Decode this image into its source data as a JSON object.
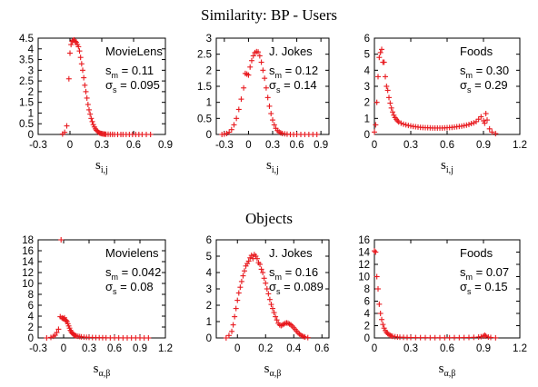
{
  "figure": {
    "top_title": "Similarity: BP - Users",
    "section_title": "Objects"
  },
  "chart_data": [
    {
      "type": "scatter",
      "row": "users",
      "label": "MovieLens",
      "stats": {
        "s_m": "0.11",
        "sigma_s": "0.095"
      },
      "xlabel": {
        "base": "s",
        "sub": "i,j"
      },
      "xlim": [
        -0.3,
        0.9
      ],
      "ylim": [
        0,
        4.5
      ],
      "xticks": [
        "-0.3",
        "0",
        "0.3",
        "0.6",
        "0.9"
      ],
      "yticks": [
        "0",
        "0.5",
        "1",
        "1.5",
        "2",
        "2.5",
        "3",
        "3.5",
        "4",
        "4.5"
      ],
      "color": "#e8191e",
      "points": [
        [
          -0.07,
          0.02
        ],
        [
          -0.05,
          0.1
        ],
        [
          -0.03,
          0.4
        ],
        [
          -0.01,
          2.6
        ],
        [
          0.0,
          3.8
        ],
        [
          0.01,
          4.2
        ],
        [
          0.02,
          4.35
        ],
        [
          0.03,
          4.4
        ],
        [
          0.04,
          4.42
        ],
        [
          0.05,
          4.35
        ],
        [
          0.06,
          4.3
        ],
        [
          0.07,
          4.2
        ],
        [
          0.08,
          4.1
        ],
        [
          0.09,
          3.9
        ],
        [
          0.1,
          3.6
        ],
        [
          0.11,
          3.3
        ],
        [
          0.12,
          3.0
        ],
        [
          0.13,
          2.65
        ],
        [
          0.14,
          2.3
        ],
        [
          0.15,
          2.0
        ],
        [
          0.16,
          1.7
        ],
        [
          0.17,
          1.4
        ],
        [
          0.18,
          1.15
        ],
        [
          0.19,
          0.95
        ],
        [
          0.2,
          0.75
        ],
        [
          0.21,
          0.6
        ],
        [
          0.22,
          0.46
        ],
        [
          0.23,
          0.35
        ],
        [
          0.24,
          0.26
        ],
        [
          0.25,
          0.19
        ],
        [
          0.26,
          0.14
        ],
        [
          0.27,
          0.1
        ],
        [
          0.28,
          0.07
        ],
        [
          0.29,
          0.05
        ],
        [
          0.3,
          0.035
        ],
        [
          0.31,
          0.025
        ],
        [
          0.32,
          0.02
        ],
        [
          0.33,
          0.015
        ],
        [
          0.34,
          0.01
        ],
        [
          0.36,
          0.01
        ],
        [
          0.38,
          0.005
        ],
        [
          0.4,
          0.005
        ],
        [
          0.42,
          0.0
        ],
        [
          0.45,
          0.0
        ],
        [
          0.48,
          0.0
        ],
        [
          0.5,
          0.0
        ],
        [
          0.53,
          0.0
        ],
        [
          0.56,
          0.0
        ],
        [
          0.59,
          0.0
        ],
        [
          0.62,
          0.0
        ],
        [
          0.65,
          0.0
        ],
        [
          0.68,
          0.0
        ],
        [
          0.72,
          0.0
        ],
        [
          0.76,
          0.0
        ]
      ]
    },
    {
      "type": "scatter",
      "row": "users",
      "label": "J. Jokes",
      "stats": {
        "s_m": "0.12",
        "sigma_s": "0.14"
      },
      "xlabel": {
        "base": "s",
        "sub": "i,j"
      },
      "xlim": [
        -0.4,
        1.0
      ],
      "ylim": [
        0,
        3
      ],
      "xticks": [
        "-0.3",
        "0",
        "0.3",
        "0.6",
        "0.9"
      ],
      "yticks": [
        "0",
        "0.5",
        "1",
        "1.5",
        "2",
        "2.5",
        "3"
      ],
      "color": "#e8191e",
      "points": [
        [
          -0.33,
          0.0
        ],
        [
          -0.3,
          0.01
        ],
        [
          -0.27,
          0.03
        ],
        [
          -0.24,
          0.07
        ],
        [
          -0.21,
          0.15
        ],
        [
          -0.18,
          0.3
        ],
        [
          -0.15,
          0.5
        ],
        [
          -0.12,
          0.78
        ],
        [
          -0.09,
          1.1
        ],
        [
          -0.06,
          1.45
        ],
        [
          -0.04,
          1.9
        ],
        [
          -0.02,
          1.88
        ],
        [
          0.0,
          1.85
        ],
        [
          0.02,
          2.1
        ],
        [
          0.04,
          2.3
        ],
        [
          0.06,
          2.45
        ],
        [
          0.08,
          2.55
        ],
        [
          0.1,
          2.58
        ],
        [
          0.12,
          2.57
        ],
        [
          0.14,
          2.45
        ],
        [
          0.16,
          2.25
        ],
        [
          0.18,
          2.0
        ],
        [
          0.2,
          1.75
        ],
        [
          0.22,
          1.45
        ],
        [
          0.24,
          1.15
        ],
        [
          0.26,
          0.88
        ],
        [
          0.28,
          0.65
        ],
        [
          0.3,
          0.45
        ],
        [
          0.32,
          0.3
        ],
        [
          0.34,
          0.19
        ],
        [
          0.36,
          0.12
        ],
        [
          0.38,
          0.08
        ],
        [
          0.4,
          0.05
        ],
        [
          0.42,
          0.03
        ],
        [
          0.45,
          0.02
        ],
        [
          0.48,
          0.01
        ],
        [
          0.52,
          0.0
        ],
        [
          0.56,
          0.0
        ],
        [
          0.6,
          0.0
        ],
        [
          0.65,
          0.0
        ],
        [
          0.7,
          0.0
        ],
        [
          0.75,
          0.0
        ],
        [
          0.8,
          0.0
        ],
        [
          0.85,
          0.0
        ]
      ]
    },
    {
      "type": "scatter",
      "row": "users",
      "label": "Foods",
      "stats": {
        "s_m": "0.30",
        "sigma_s": "0.29"
      },
      "xlabel": {
        "base": "s",
        "sub": "i,j"
      },
      "xlim": [
        0,
        1.2
      ],
      "ylim": [
        0,
        6
      ],
      "xticks": [
        "0",
        "0.3",
        "0.6",
        "0.9",
        "1.2"
      ],
      "yticks": [
        "0",
        "1",
        "2",
        "3",
        "4",
        "5",
        "6"
      ],
      "color": "#e8191e",
      "points": [
        [
          0.0,
          0.15
        ],
        [
          0.01,
          0.6
        ],
        [
          0.02,
          2.0
        ],
        [
          0.03,
          3.6
        ],
        [
          0.04,
          4.8
        ],
        [
          0.05,
          5.1
        ],
        [
          0.06,
          5.3
        ],
        [
          0.07,
          4.5
        ],
        [
          0.08,
          4.5
        ],
        [
          0.09,
          3.6
        ],
        [
          0.1,
          3.0
        ],
        [
          0.11,
          2.75
        ],
        [
          0.12,
          2.3
        ],
        [
          0.13,
          1.95
        ],
        [
          0.14,
          1.65
        ],
        [
          0.15,
          1.4
        ],
        [
          0.16,
          1.2
        ],
        [
          0.17,
          1.05
        ],
        [
          0.18,
          0.95
        ],
        [
          0.19,
          0.85
        ],
        [
          0.2,
          0.78
        ],
        [
          0.22,
          0.7
        ],
        [
          0.24,
          0.64
        ],
        [
          0.26,
          0.6
        ],
        [
          0.28,
          0.56
        ],
        [
          0.3,
          0.53
        ],
        [
          0.32,
          0.5
        ],
        [
          0.34,
          0.48
        ],
        [
          0.36,
          0.46
        ],
        [
          0.38,
          0.44
        ],
        [
          0.4,
          0.43
        ],
        [
          0.42,
          0.42
        ],
        [
          0.44,
          0.42
        ],
        [
          0.46,
          0.41
        ],
        [
          0.48,
          0.4
        ],
        [
          0.5,
          0.4
        ],
        [
          0.52,
          0.4
        ],
        [
          0.54,
          0.4
        ],
        [
          0.56,
          0.4
        ],
        [
          0.58,
          0.41
        ],
        [
          0.6,
          0.42
        ],
        [
          0.62,
          0.43
        ],
        [
          0.64,
          0.44
        ],
        [
          0.66,
          0.46
        ],
        [
          0.68,
          0.48
        ],
        [
          0.7,
          0.5
        ],
        [
          0.72,
          0.52
        ],
        [
          0.74,
          0.55
        ],
        [
          0.76,
          0.58
        ],
        [
          0.78,
          0.62
        ],
        [
          0.8,
          0.68
        ],
        [
          0.82,
          0.72
        ],
        [
          0.84,
          0.8
        ],
        [
          0.86,
          0.95
        ],
        [
          0.88,
          1.1
        ],
        [
          0.9,
          0.85
        ],
        [
          0.91,
          0.7
        ],
        [
          0.92,
          1.3
        ],
        [
          0.93,
          0.9
        ],
        [
          0.95,
          0.35
        ],
        [
          0.97,
          0.15
        ],
        [
          1.0,
          0.05
        ]
      ]
    },
    {
      "type": "scatter",
      "row": "objects",
      "label": "Movielens",
      "stats": {
        "s_m": "0.042",
        "sigma_s": "0.08"
      },
      "xlabel": {
        "base": "s",
        "sub": "α,β"
      },
      "xlim": [
        -0.3,
        1.2
      ],
      "ylim": [
        0,
        18
      ],
      "xticks": [
        "-0.3",
        "0",
        "0.3",
        "0.6",
        "0.9",
        "1.2"
      ],
      "yticks": [
        "0",
        "2",
        "4",
        "6",
        "8",
        "10",
        "12",
        "14",
        "16",
        "18"
      ],
      "color": "#e8191e",
      "points": [
        [
          -0.2,
          0.0
        ],
        [
          -0.15,
          0.1
        ],
        [
          -0.12,
          0.3
        ],
        [
          -0.1,
          0.5
        ],
        [
          -0.08,
          1.0
        ],
        [
          -0.06,
          1.6
        ],
        [
          -0.04,
          3.9
        ],
        [
          -0.03,
          18.0
        ],
        [
          -0.02,
          3.7
        ],
        [
          -0.01,
          3.6
        ],
        [
          0.0,
          3.5
        ],
        [
          0.01,
          3.7
        ],
        [
          0.02,
          3.3
        ],
        [
          0.03,
          3.2
        ],
        [
          0.04,
          3.0
        ],
        [
          0.05,
          2.6
        ],
        [
          0.06,
          2.2
        ],
        [
          0.07,
          1.8
        ],
        [
          0.08,
          1.4
        ],
        [
          0.09,
          1.15
        ],
        [
          0.1,
          0.9
        ],
        [
          0.11,
          0.75
        ],
        [
          0.12,
          0.6
        ],
        [
          0.13,
          0.5
        ],
        [
          0.14,
          0.42
        ],
        [
          0.15,
          0.36
        ],
        [
          0.17,
          0.3
        ],
        [
          0.19,
          0.25
        ],
        [
          0.21,
          0.2
        ],
        [
          0.24,
          0.15
        ],
        [
          0.27,
          0.12
        ],
        [
          0.3,
          0.1
        ],
        [
          0.34,
          0.08
        ],
        [
          0.38,
          0.06
        ],
        [
          0.42,
          0.05
        ],
        [
          0.46,
          0.04
        ],
        [
          0.5,
          0.03
        ],
        [
          0.55,
          0.02
        ],
        [
          0.6,
          0.02
        ],
        [
          0.65,
          0.02
        ],
        [
          0.7,
          0.01
        ],
        [
          0.75,
          0.01
        ],
        [
          0.8,
          0.01
        ],
        [
          0.85,
          0.01
        ],
        [
          0.9,
          0.01
        ],
        [
          0.95,
          0.0
        ],
        [
          1.0,
          0.0
        ]
      ]
    },
    {
      "type": "scatter",
      "row": "objects",
      "label": "J. Jokes",
      "stats": {
        "s_m": "0.16",
        "sigma_s": "0.089"
      },
      "xlabel": {
        "base": "s",
        "sub": "α,β"
      },
      "xlim": [
        -0.15,
        0.65
      ],
      "ylim": [
        0,
        6
      ],
      "xticks": [
        "0",
        "0.2",
        "0.4",
        "0.6"
      ],
      "yticks": [
        "0",
        "1",
        "2",
        "3",
        "4",
        "5",
        "6"
      ],
      "color": "#e8191e",
      "points": [
        [
          -0.08,
          0.0
        ],
        [
          -0.06,
          0.15
        ],
        [
          -0.04,
          0.4
        ],
        [
          -0.03,
          0.8
        ],
        [
          -0.02,
          1.3
        ],
        [
          -0.01,
          1.8
        ],
        [
          0.0,
          2.3
        ],
        [
          0.01,
          2.75
        ],
        [
          0.02,
          3.1
        ],
        [
          0.03,
          3.45
        ],
        [
          0.04,
          3.8
        ],
        [
          0.05,
          4.1
        ],
        [
          0.06,
          4.4
        ],
        [
          0.07,
          4.55
        ],
        [
          0.08,
          4.7
        ],
        [
          0.09,
          4.9
        ],
        [
          0.1,
          5.05
        ],
        [
          0.11,
          4.85
        ],
        [
          0.12,
          5.1
        ],
        [
          0.13,
          5.0
        ],
        [
          0.14,
          4.85
        ],
        [
          0.15,
          4.6
        ],
        [
          0.16,
          4.5
        ],
        [
          0.17,
          4.2
        ],
        [
          0.18,
          4.0
        ],
        [
          0.19,
          3.65
        ],
        [
          0.2,
          3.35
        ],
        [
          0.21,
          3.0
        ],
        [
          0.22,
          2.7
        ],
        [
          0.23,
          2.35
        ],
        [
          0.24,
          2.05
        ],
        [
          0.25,
          1.8
        ],
        [
          0.26,
          1.55
        ],
        [
          0.27,
          1.3
        ],
        [
          0.28,
          1.1
        ],
        [
          0.29,
          0.9
        ],
        [
          0.3,
          0.8
        ],
        [
          0.31,
          0.75
        ],
        [
          0.32,
          0.8
        ],
        [
          0.33,
          0.85
        ],
        [
          0.34,
          0.9
        ],
        [
          0.35,
          0.92
        ],
        [
          0.36,
          0.9
        ],
        [
          0.37,
          0.85
        ],
        [
          0.38,
          0.8
        ],
        [
          0.39,
          0.72
        ],
        [
          0.4,
          0.62
        ],
        [
          0.41,
          0.52
        ],
        [
          0.42,
          0.42
        ],
        [
          0.43,
          0.32
        ],
        [
          0.44,
          0.24
        ],
        [
          0.45,
          0.17
        ],
        [
          0.46,
          0.12
        ],
        [
          0.47,
          0.08
        ],
        [
          0.48,
          0.05
        ],
        [
          0.5,
          0.02
        ]
      ]
    },
    {
      "type": "scatter",
      "row": "objects",
      "label": "Foods",
      "stats": {
        "s_m": "0.07",
        "sigma_s": "0.15"
      },
      "xlabel": {
        "base": "s",
        "sub": "α,β"
      },
      "xlim": [
        0,
        1.2
      ],
      "ylim": [
        0,
        16
      ],
      "xticks": [
        "0",
        "0.3",
        "0.6",
        "0.9",
        "1.2"
      ],
      "yticks": [
        "0",
        "2",
        "4",
        "6",
        "8",
        "10",
        "12",
        "14",
        "16"
      ],
      "color": "#e8191e",
      "points": [
        [
          0.0,
          14.2
        ],
        [
          0.01,
          14.0
        ],
        [
          0.02,
          10.0
        ],
        [
          0.03,
          8.0
        ],
        [
          0.04,
          5.5
        ],
        [
          0.05,
          4.0
        ],
        [
          0.06,
          3.0
        ],
        [
          0.07,
          2.2
        ],
        [
          0.08,
          1.6
        ],
        [
          0.09,
          1.2
        ],
        [
          0.1,
          0.9
        ],
        [
          0.11,
          0.7
        ],
        [
          0.12,
          0.55
        ],
        [
          0.13,
          0.42
        ],
        [
          0.14,
          0.33
        ],
        [
          0.15,
          0.26
        ],
        [
          0.17,
          0.2
        ],
        [
          0.19,
          0.15
        ],
        [
          0.21,
          0.12
        ],
        [
          0.24,
          0.1
        ],
        [
          0.27,
          0.08
        ],
        [
          0.3,
          0.07
        ],
        [
          0.34,
          0.06
        ],
        [
          0.38,
          0.05
        ],
        [
          0.42,
          0.05
        ],
        [
          0.46,
          0.04
        ],
        [
          0.5,
          0.04
        ],
        [
          0.54,
          0.04
        ],
        [
          0.58,
          0.04
        ],
        [
          0.62,
          0.04
        ],
        [
          0.66,
          0.05
        ],
        [
          0.7,
          0.05
        ],
        [
          0.74,
          0.06
        ],
        [
          0.78,
          0.08
        ],
        [
          0.82,
          0.1
        ],
        [
          0.86,
          0.15
        ],
        [
          0.88,
          0.2
        ],
        [
          0.9,
          0.3
        ],
        [
          0.91,
          0.45
        ],
        [
          0.92,
          0.3
        ],
        [
          0.94,
          0.15
        ],
        [
          0.96,
          0.08
        ],
        [
          1.0,
          0.02
        ]
      ]
    }
  ]
}
